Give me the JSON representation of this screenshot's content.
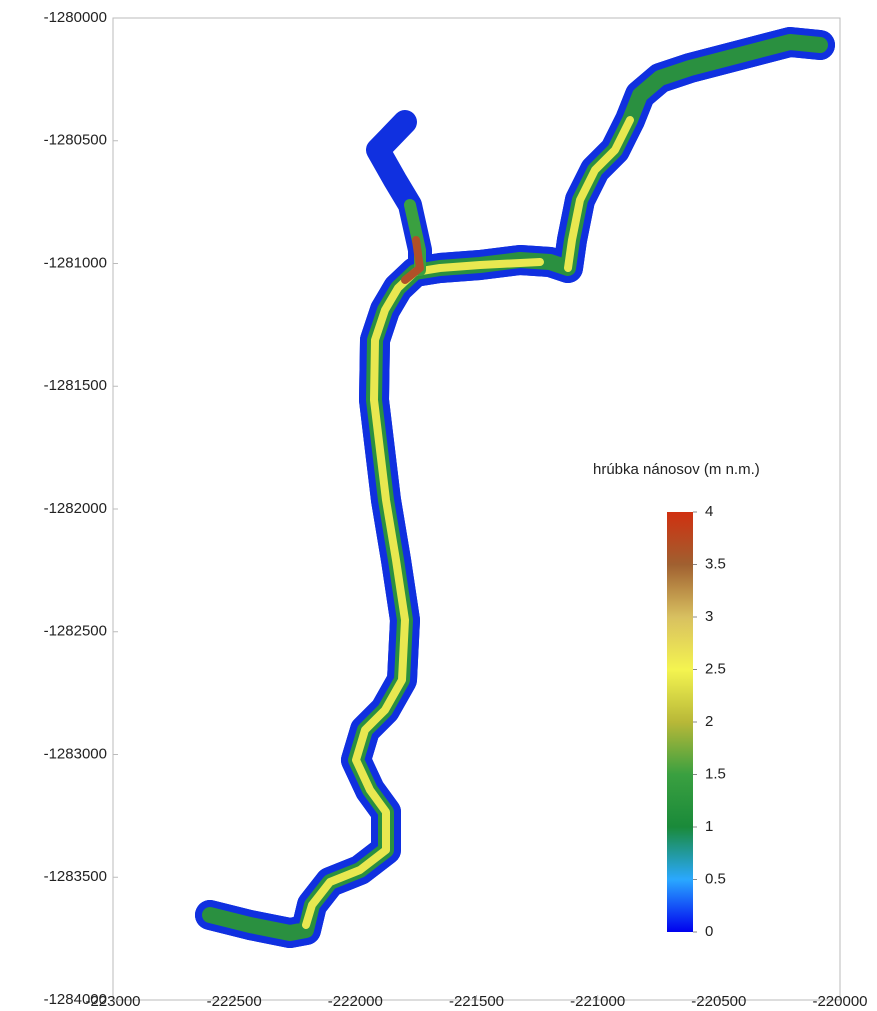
{
  "chart_data": {
    "type": "map",
    "xlim": [
      -223000,
      -220000
    ],
    "xticks": [
      -223000,
      -222500,
      -222000,
      -221500,
      -221000,
      -220500,
      -220000
    ],
    "ylim": [
      -1284000,
      -1280000
    ],
    "yticks": [
      -1280000,
      -1280500,
      -1281000,
      -1281500,
      -1282000,
      -1282500,
      -1283000,
      -1283500,
      -1284000
    ],
    "colorbar": {
      "title": "hrúbka nánosov (m n.m.)",
      "lim": [
        0,
        4
      ],
      "ticks": [
        0,
        0.5,
        1,
        1.5,
        2,
        2.5,
        3,
        3.5,
        4
      ],
      "colors": [
        "#0000ee",
        "#2aa8ff",
        "#1a8a3a",
        "#3aa040",
        "#b8b838",
        "#f4f450",
        "#d8c060",
        "#a06030",
        "#d03010"
      ]
    }
  }
}
